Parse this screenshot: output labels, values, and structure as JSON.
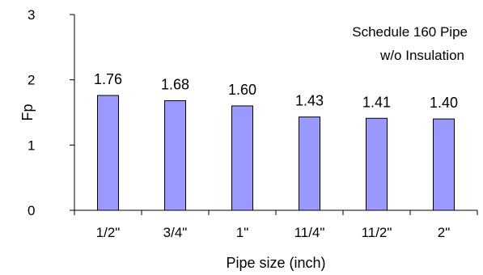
{
  "chart_data": {
    "type": "bar",
    "categories": [
      "1/2\"",
      "3/4\"",
      "1\"",
      "11/4\"",
      "11/2\"",
      "2\""
    ],
    "values": [
      1.76,
      1.68,
      1.6,
      1.43,
      1.41,
      1.4
    ],
    "data_labels": [
      "1.76",
      "1.68",
      "1.60",
      "1.43",
      "1.41",
      "1.40"
    ],
    "xlabel": "Pipe size (inch)",
    "ylabel": "Fp",
    "ylim": [
      0,
      3
    ],
    "yticks": [
      0,
      1,
      2,
      3
    ],
    "annotation": [
      "Schedule 160 Pipe",
      "w/o Insulation"
    ],
    "bar_color": "#9999ff",
    "bar_edge_color": "#000000",
    "grid": false,
    "legend": "none"
  }
}
